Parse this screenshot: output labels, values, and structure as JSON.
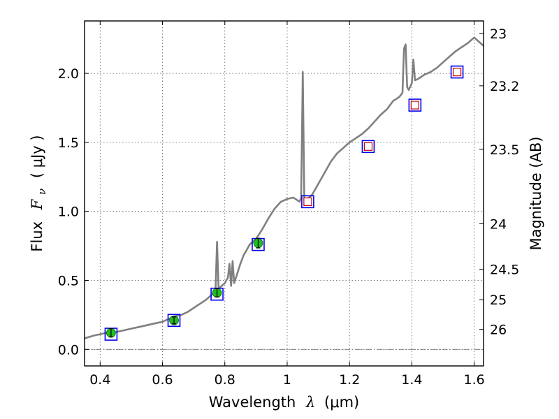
{
  "chart_data": {
    "type": "scatter",
    "xlabel_prefix": "Wavelength",
    "xlabel_symbol": "λ",
    "xlabel_unit": "(μm)",
    "ylabel_prefix": "Flux",
    "ylabel_symbol": "F",
    "ylabel_subscript": "ν",
    "ylabel_unit": "( μJy )",
    "ylabel_right": "Magnitude (AB)",
    "xlim": [
      0.35,
      1.63
    ],
    "ylim": [
      -0.12,
      2.38
    ],
    "x_ticks": [
      0.4,
      0.6,
      0.8,
      1.0,
      1.2,
      1.4,
      1.6
    ],
    "x_tick_labels": [
      "0.4",
      "0.6",
      "0.8",
      "1",
      "1.2",
      "1.4",
      "1.6"
    ],
    "y_ticks": [
      0.0,
      0.5,
      1.0,
      1.5,
      2.0
    ],
    "y_tick_labels": [
      "0.0",
      "0.5",
      "1.0",
      "1.5",
      "2.0"
    ],
    "right_ticks": [
      {
        "label": "23",
        "flux": 2.29
      },
      {
        "label": "23.2",
        "flux": 1.91
      },
      {
        "label": "23.5",
        "flux": 1.45
      },
      {
        "label": "24",
        "flux": 0.91
      },
      {
        "label": "24.5",
        "flux": 0.58
      },
      {
        "label": "25",
        "flux": 0.36
      },
      {
        "label": "26",
        "flux": 0.145
      }
    ],
    "grid": true,
    "colors": {
      "spectrum": "#808080",
      "model_box": "#0000ee",
      "observed_point": "#22bb22",
      "upper_point_edge": "#cc0000",
      "zero_line": "#777777"
    },
    "spectrum": {
      "x": [
        0.35,
        0.38,
        0.4,
        0.42,
        0.44,
        0.46,
        0.48,
        0.5,
        0.52,
        0.54,
        0.56,
        0.58,
        0.6,
        0.62,
        0.64,
        0.66,
        0.68,
        0.7,
        0.72,
        0.74,
        0.76,
        0.77,
        0.775,
        0.78,
        0.79,
        0.8,
        0.81,
        0.815,
        0.82,
        0.825,
        0.83,
        0.84,
        0.85,
        0.86,
        0.87,
        0.88,
        0.9,
        0.92,
        0.94,
        0.96,
        0.98,
        1.0,
        1.02,
        1.04,
        1.045,
        1.05,
        1.055,
        1.06,
        1.08,
        1.1,
        1.12,
        1.14,
        1.16,
        1.18,
        1.2,
        1.22,
        1.24,
        1.26,
        1.28,
        1.3,
        1.32,
        1.34,
        1.36,
        1.37,
        1.375,
        1.38,
        1.385,
        1.39,
        1.4,
        1.405,
        1.41,
        1.42,
        1.44,
        1.46,
        1.48,
        1.5,
        1.52,
        1.54,
        1.56,
        1.58,
        1.6,
        1.63
      ],
      "y": [
        0.08,
        0.1,
        0.11,
        0.12,
        0.12,
        0.13,
        0.14,
        0.15,
        0.16,
        0.17,
        0.18,
        0.19,
        0.2,
        0.22,
        0.24,
        0.25,
        0.27,
        0.3,
        0.33,
        0.36,
        0.4,
        0.42,
        0.78,
        0.44,
        0.46,
        0.48,
        0.52,
        0.62,
        0.46,
        0.64,
        0.48,
        0.55,
        0.62,
        0.68,
        0.72,
        0.76,
        0.8,
        0.87,
        0.95,
        1.02,
        1.07,
        1.09,
        1.1,
        1.07,
        1.1,
        2.01,
        1.09,
        1.08,
        1.12,
        1.2,
        1.28,
        1.36,
        1.42,
        1.46,
        1.5,
        1.53,
        1.56,
        1.6,
        1.65,
        1.7,
        1.74,
        1.8,
        1.83,
        1.86,
        2.18,
        2.21,
        1.9,
        1.88,
        1.93,
        2.1,
        1.95,
        1.96,
        1.99,
        2.01,
        2.04,
        2.08,
        2.12,
        2.16,
        2.19,
        2.22,
        2.26,
        2.2
      ]
    },
    "model_points": [
      {
        "x": 0.435,
        "y": 0.11
      },
      {
        "x": 0.637,
        "y": 0.21
      },
      {
        "x": 0.775,
        "y": 0.4
      },
      {
        "x": 0.907,
        "y": 0.76
      },
      {
        "x": 1.066,
        "y": 1.07
      },
      {
        "x": 1.26,
        "y": 1.47
      },
      {
        "x": 1.41,
        "y": 1.77
      },
      {
        "x": 1.545,
        "y": 2.01
      }
    ],
    "observed_points": [
      {
        "x": 0.435,
        "y": 0.12,
        "err": 0.03
      },
      {
        "x": 0.637,
        "y": 0.21,
        "err": 0.025
      },
      {
        "x": 0.775,
        "y": 0.41,
        "err": 0.03
      },
      {
        "x": 0.907,
        "y": 0.77,
        "err": 0.035
      }
    ],
    "upper_points": [
      {
        "x": 1.066,
        "y": 1.07
      },
      {
        "x": 1.26,
        "y": 1.47
      },
      {
        "x": 1.41,
        "y": 1.77
      },
      {
        "x": 1.545,
        "y": 2.01
      }
    ]
  }
}
